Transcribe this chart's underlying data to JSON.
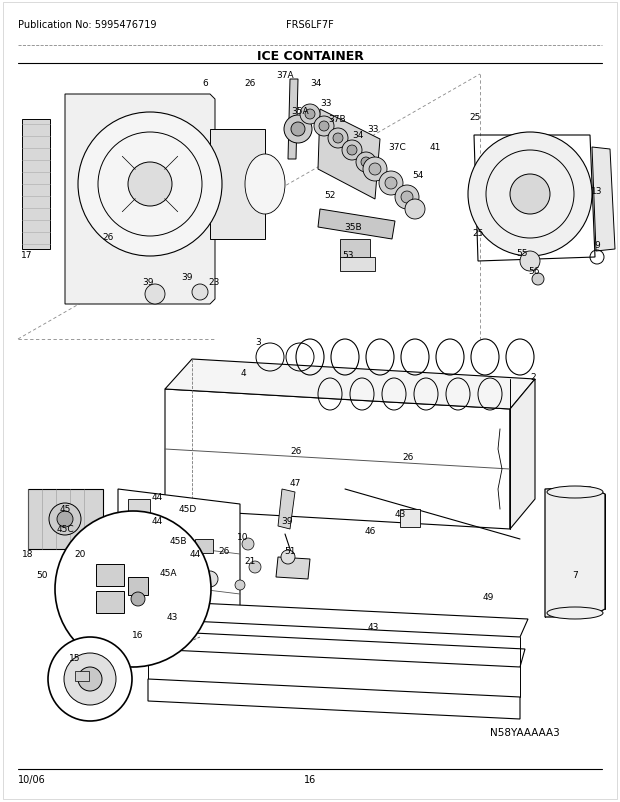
{
  "title": "ICE CONTAINER",
  "pub_no": "Publication No: 5995476719",
  "model": "FRS6LF7F",
  "date": "10/06",
  "page": "16",
  "diagram_id": "N58YAAAAA3",
  "bg_color": "#ffffff",
  "text_color": "#000000",
  "fig_width": 6.2,
  "fig_height": 8.03,
  "dpi": 100
}
